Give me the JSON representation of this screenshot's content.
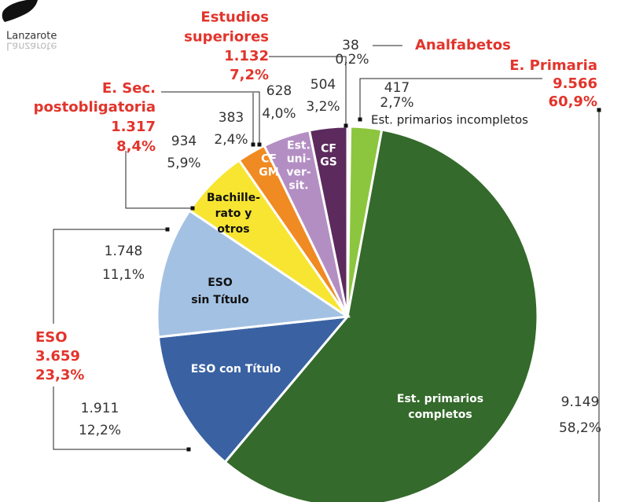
{
  "chart_data": {
    "type": "pie",
    "region": "Lanzarote",
    "categories": [
      "Analfabetos",
      "Est. primarios incompletos",
      "Est. primarios\ncompletos",
      "ESO con Título",
      "ESO\nsin Título",
      "Bachille-\nrato  y\notros",
      "CF\nGM",
      "Est.\nuni-\nver-\nsit.",
      "CF\nGS"
    ],
    "values": [
      38,
      417,
      9149,
      1911,
      1748,
      934,
      383,
      628,
      504
    ],
    "value_labels": [
      "38",
      "417",
      "9.149",
      "1.911",
      "1.748",
      "934",
      "383",
      "628",
      "504"
    ],
    "percent_labels": [
      "0,2%",
      "2,7%",
      "58,2%",
      "12,2%",
      "11,1%",
      "5,9%",
      "2,4%",
      "4,0%",
      "3,2%"
    ],
    "colors": [
      "#e6e6e6",
      "#8cc63e",
      "#346a2b",
      "#3a62a3",
      "#a3c1e3",
      "#f7e531",
      "#f08a22",
      "#b38ec3",
      "#5c2a5d"
    ],
    "groups": [
      {
        "label": "Estudios\nsuperiores",
        "value": 1132,
        "value_label": "1.132",
        "percent_label": "7,2%"
      },
      {
        "label": "E. Sec.\npostobligatoria",
        "value": 1317,
        "value_label": "1.317",
        "percent_label": "8,4%"
      },
      {
        "label": "ESO",
        "value": 3659,
        "value_label": "3.659",
        "percent_label": "23,3%"
      },
      {
        "label": "E. Primaria",
        "value": 9566,
        "value_label": "9.566",
        "percent_label": "60,9%"
      }
    ]
  }
}
